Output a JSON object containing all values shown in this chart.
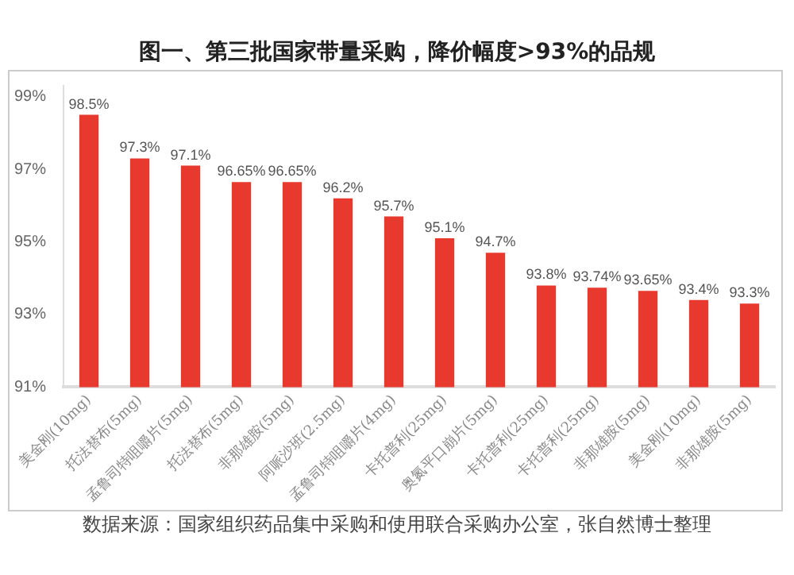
{
  "chart_data": {
    "type": "bar",
    "title": "图一、第三批国家带量采购，降价幅度>93%的品规",
    "categories": [
      "美金刚(10mg)",
      "托法替布(5mg)",
      "孟鲁司特咀嚼片(5mg)",
      "托法替布(5mg)",
      "非那雄胺(5mg)",
      "阿哌沙班(2.5mg)",
      "孟鲁司特咀嚼片(4mg)",
      "卡托普利(25mg)",
      "奥氮平口崩片(5mg)",
      "卡托普利(25mg)",
      "卡托普利(25mg)",
      "非那雄胺(5mg)",
      "美金刚(10mg)",
      "非那雄胺(5mg)"
    ],
    "values": [
      98.5,
      97.3,
      97.1,
      96.65,
      96.65,
      96.2,
      95.7,
      95.1,
      94.7,
      93.8,
      93.74,
      93.65,
      93.4,
      93.3
    ],
    "value_labels": [
      "98.5%",
      "97.3%",
      "97.1%",
      "96.65%",
      "96.65%",
      "96.2%",
      "95.7%",
      "95.1%",
      "94.7%",
      "93.8%",
      "93.74%",
      "93.65%",
      "93.4%",
      "93.3%"
    ],
    "color": "#e8392f",
    "ylim": [
      91,
      99.3
    ],
    "yticks": [
      {
        "value": 91,
        "label": "91%"
      },
      {
        "value": 93,
        "label": "93%"
      },
      {
        "value": 95,
        "label": "95%"
      },
      {
        "value": 97,
        "label": "97%"
      },
      {
        "value": 99,
        "label": "99%"
      }
    ],
    "grid": false,
    "annotations": [
      "数据来源：国家组织药品集中采购和使用联合采购办公室，张自然博士整理"
    ]
  }
}
